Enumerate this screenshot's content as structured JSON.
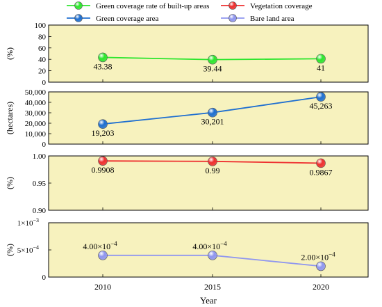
{
  "chart_data": {
    "type": "line",
    "x": [
      2010,
      2015,
      2020
    ],
    "xlabel": "Year",
    "xticks": [
      "2010",
      "2015",
      "2020"
    ],
    "background_color": "#f7f2be",
    "legend": {
      "placement": "top",
      "entries": [
        {
          "name": "Green coverage rate of built-up areas",
          "color": "#2ee62e"
        },
        {
          "name": "Vegetation coverage",
          "color": "#ee3030"
        },
        {
          "name": "Green coverage area",
          "color": "#1f6fd0"
        },
        {
          "name": "Bare land area",
          "color": "#8f96ef"
        }
      ]
    },
    "panels": [
      {
        "ylabel": "(%)",
        "ylim": [
          0,
          100
        ],
        "yticks": [
          "0",
          "20",
          "40",
          "60",
          "80",
          "100"
        ],
        "series": {
          "name": "Green coverage rate of built-up areas",
          "color": "#2ee62e",
          "values": [
            43.38,
            39.44,
            41
          ],
          "labels": [
            "43.38",
            "39.44",
            "41"
          ]
        }
      },
      {
        "ylabel": "(hectares)",
        "ylim": [
          0,
          50000
        ],
        "yticks": [
          "0",
          "10,000",
          "20,000",
          "30,000",
          "40,000",
          "50,000"
        ],
        "series": {
          "name": "Green coverage area",
          "color": "#1f6fd0",
          "values": [
            19203,
            30201,
            45263
          ],
          "labels": [
            "19,203",
            "30,201",
            "45,263"
          ]
        }
      },
      {
        "ylabel": "(%)",
        "ylim": [
          0.9,
          1.0
        ],
        "yticks": [
          "0.90",
          "0.95",
          "1.00"
        ],
        "series": {
          "name": "Vegetation coverage",
          "color": "#ee3030",
          "values": [
            0.9908,
            0.99,
            0.9867
          ],
          "labels": [
            "0.9908",
            "0.99",
            "0.9867"
          ]
        }
      },
      {
        "ylabel": "(%)",
        "ylim": [
          0,
          0.001
        ],
        "ytick_main": "0",
        "ytick_mid_mantissa": "5×10",
        "ytick_mid_exp": "−4",
        "ytick_top_mantissa": "1×10",
        "ytick_top_exp": "−3",
        "series": {
          "name": "Bare land area",
          "color": "#8f96ef",
          "values": [
            0.0004,
            0.0004,
            0.0002
          ],
          "label_mantissas": [
            "4.00×10",
            "4.00×10",
            "2.00×10"
          ],
          "label_exponents": [
            "−4",
            "−4",
            "−4"
          ]
        }
      }
    ]
  }
}
